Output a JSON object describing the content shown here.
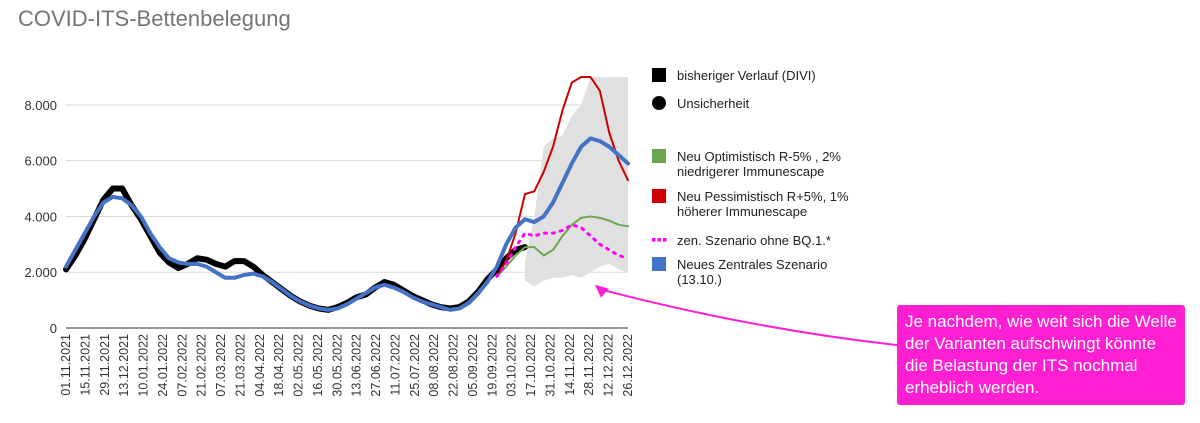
{
  "chart_data": {
    "type": "line",
    "title": "COVID-ITS-Bettenbelegung",
    "xlabel": "",
    "ylabel": "",
    "ylim": [
      0,
      9000
    ],
    "y_ticks": [
      {
        "value": 0,
        "label": "0"
      },
      {
        "value": 2000,
        "label": "2.000"
      },
      {
        "value": 4000,
        "label": "4.000"
      },
      {
        "value": 6000,
        "label": "6.000"
      },
      {
        "value": 8000,
        "label": "8.000"
      }
    ],
    "x_ticks": [
      "01.11.2021",
      "15.11.2021",
      "29.11.2021",
      "13.12.2021",
      "10.01.2022",
      "24.01.2022",
      "07.02.2022",
      "21.02.2022",
      "07.03.2022",
      "21.03.2022",
      "04.04.2022",
      "18.04.2022",
      "02.05.2022",
      "16.05.2022",
      "30.05.2022",
      "13.06.2022",
      "27.06.2022",
      "11.07.2022",
      "25.07.2022",
      "08.08.2022",
      "22.08.2022",
      "05.09.2022",
      "19.09.2022",
      "03.10.2022",
      "17.10.2022",
      "31.10.2022",
      "14.11.2022",
      "28.11.2022",
      "12.12.2022",
      "26.12.2022"
    ],
    "x_range_weeks": [
      0,
      60
    ],
    "grid": "horizontal",
    "legend_position": "right",
    "uncertainty": {
      "name": "Unsicherheit",
      "color": "#e0e0e0",
      "x": [
        49,
        50,
        51,
        52,
        53,
        54,
        55,
        56,
        57,
        58,
        59,
        60
      ],
      "lower": [
        1700,
        1500,
        1700,
        1800,
        1800,
        1900,
        1800,
        2000,
        2200,
        2300,
        2100,
        2000
      ],
      "upper": [
        2400,
        4000,
        6500,
        6800,
        6900,
        7600,
        8000,
        9000,
        9000,
        9000,
        9000,
        9000
      ]
    },
    "series": [
      {
        "name": "bisheriger Verlauf (DIVI)",
        "color": "#000000",
        "width": 6,
        "x": [
          0,
          1,
          2,
          3,
          4,
          5,
          6,
          7,
          8,
          9,
          10,
          11,
          12,
          13,
          14,
          15,
          16,
          17,
          18,
          19,
          20,
          21,
          22,
          23,
          24,
          25,
          26,
          27,
          28,
          29,
          30,
          31,
          32,
          33,
          34,
          35,
          36,
          37,
          38,
          39,
          40,
          41,
          42,
          43,
          44,
          45,
          46,
          47,
          48,
          49
        ],
        "y": [
          2100,
          2600,
          3200,
          3900,
          4600,
          5000,
          5000,
          4400,
          3900,
          3300,
          2700,
          2350,
          2150,
          2300,
          2500,
          2450,
          2300,
          2200,
          2400,
          2400,
          2200,
          1900,
          1650,
          1400,
          1150,
          950,
          800,
          700,
          650,
          750,
          900,
          1100,
          1200,
          1450,
          1650,
          1550,
          1350,
          1150,
          1000,
          850,
          750,
          700,
          750,
          950,
          1300,
          1750,
          2100,
          2500,
          2800,
          2900
        ]
      },
      {
        "name": "Neu Optimistisch R-5% , 2% niedrigerer Immunescape",
        "color": "#6aa84f",
        "width": 2,
        "x": [
          46,
          47,
          48,
          49,
          50,
          51,
          52,
          53,
          54,
          55,
          56,
          57,
          58,
          59,
          60
        ],
        "y": [
          1850,
          2200,
          2600,
          2900,
          2900,
          2600,
          2800,
          3300,
          3700,
          3950,
          4000,
          3950,
          3850,
          3700,
          3650
        ]
      },
      {
        "name": "Neu Pessimistisch R+5%, 1% höherer Immunescape",
        "color": "#cc0000",
        "width": 2,
        "x": [
          46,
          47,
          48,
          49,
          50,
          51,
          52,
          53,
          54,
          55,
          56,
          57,
          58,
          59,
          60
        ],
        "y": [
          1850,
          2400,
          3400,
          4800,
          4900,
          5600,
          6500,
          7800,
          8800,
          9000,
          9000,
          8500,
          7000,
          6000,
          5300
        ]
      },
      {
        "name": "zen. Szenario ohne BQ.1.*",
        "color": "#ff00ff",
        "width": 3,
        "dash": "2,6",
        "x": [
          46,
          47,
          48,
          49,
          50,
          51,
          52,
          53,
          54,
          55,
          56,
          57,
          58,
          59,
          60
        ],
        "y": [
          1850,
          2300,
          2900,
          3400,
          3300,
          3400,
          3400,
          3500,
          3700,
          3600,
          3300,
          3000,
          2800,
          2600,
          2500
        ]
      },
      {
        "name": "Neues Zentrales Szenario (13.10.)",
        "color": "#4472c4",
        "width": 4,
        "x": [
          0,
          1,
          2,
          3,
          4,
          5,
          6,
          7,
          8,
          9,
          10,
          11,
          12,
          13,
          14,
          15,
          16,
          17,
          18,
          19,
          20,
          21,
          22,
          23,
          24,
          25,
          26,
          27,
          28,
          29,
          30,
          31,
          32,
          33,
          34,
          35,
          36,
          37,
          38,
          39,
          40,
          41,
          42,
          43,
          44,
          45,
          46,
          47,
          48,
          49,
          50,
          51,
          52,
          53,
          54,
          55,
          56,
          57,
          58,
          59,
          60
        ],
        "y": [
          2200,
          2800,
          3400,
          4000,
          4500,
          4700,
          4650,
          4400,
          4000,
          3400,
          2900,
          2500,
          2350,
          2300,
          2300,
          2200,
          2000,
          1800,
          1800,
          1900,
          1950,
          1850,
          1650,
          1400,
          1150,
          950,
          800,
          700,
          650,
          700,
          850,
          1050,
          1250,
          1450,
          1550,
          1450,
          1300,
          1100,
          950,
          850,
          750,
          650,
          700,
          900,
          1250,
          1650,
          2200,
          3000,
          3600,
          3900,
          3800,
          4000,
          4500,
          5200,
          5900,
          6500,
          6800,
          6700,
          6500,
          6200,
          5900
        ]
      }
    ],
    "legend": [
      {
        "label": "bisheriger Verlauf (DIVI)",
        "color": "#000000",
        "marker": "square",
        "lines": [
          "bisheriger Verlauf (DIVI)"
        ]
      },
      {
        "label": "Unsicherheit",
        "color": "#000000",
        "marker": "circle",
        "lines": [
          "Unsicherheit"
        ]
      },
      {
        "label": "Neu Optimistisch R-5% , 2% niedrigerer Immunescape",
        "color": "#6aa84f",
        "marker": "square",
        "lines": [
          "Neu Optimistisch R-5% , 2%",
          "niedrigerer Immunescape"
        ]
      },
      {
        "label": "Neu Pessimistisch R+5%, 1% höherer Immunescape",
        "color": "#cc0000",
        "marker": "square",
        "lines": [
          "Neu Pessimistisch R+5%, 1%",
          "höherer Immunescape"
        ]
      },
      {
        "label": "zen. Szenario ohne BQ.1.*",
        "color": "#ff00ff",
        "marker": "dots",
        "lines": [
          "zen. Szenario ohne BQ.1.*"
        ]
      },
      {
        "label": "Neues Zentrales Szenario (13.10.)",
        "color": "#4472c4",
        "marker": "square",
        "lines": [
          "Neues Zentrales Szenario",
          "(13.10.)"
        ]
      }
    ],
    "annotation": {
      "text": "Je nachdem, wie weit sich die Welle der Varianten aufschwingt könnte die Belastung der ITS nochmal erheblich werden.",
      "color": "#ff1fd2",
      "points_to_week": 49,
      "points_to_value": 1800
    }
  }
}
